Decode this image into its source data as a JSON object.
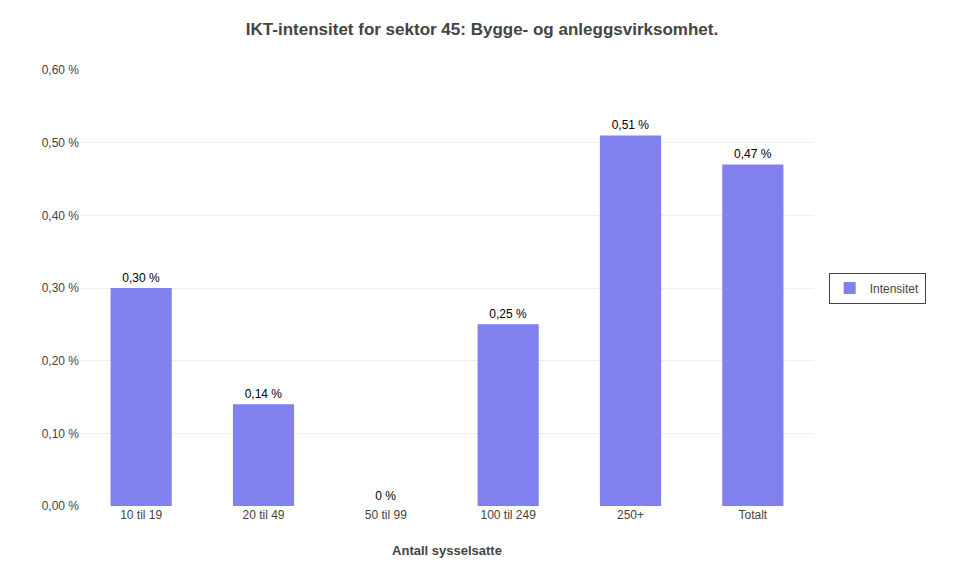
{
  "chart_data": {
    "type": "bar",
    "title": "IKT-intensitet for sektor 45: Bygge- og anleggsvirksomhet.",
    "xlabel": "Antall sysselsatte",
    "categories": [
      "10 til 19",
      "20 til 49",
      "50 til 99",
      "100 til 249",
      "250+",
      "Totalt"
    ],
    "series": [
      {
        "name": "Intensitet",
        "color": "#8080EE",
        "values": [
          0.3,
          0.14,
          0.0,
          0.25,
          0.51,
          0.47
        ],
        "value_labels": [
          "0,30 %",
          "0,14 %",
          "0 %",
          "0,25 %",
          "0,51 %",
          "0,47 %"
        ]
      }
    ],
    "ylim": [
      0,
      0.6
    ],
    "yticks": [
      {
        "value": 0,
        "label": "0,00 %"
      },
      {
        "value": 0.1,
        "label": "0,10 %"
      },
      {
        "value": 0.2,
        "label": "0,20 %"
      },
      {
        "value": 0.3,
        "label": "0,30 %"
      },
      {
        "value": 0.4,
        "label": "0,40 %"
      },
      {
        "value": 0.5,
        "label": "0,50 %"
      },
      {
        "value": 0.6,
        "label": "0,60 %"
      }
    ],
    "grid": true,
    "data_labels": true,
    "legend": "right"
  }
}
